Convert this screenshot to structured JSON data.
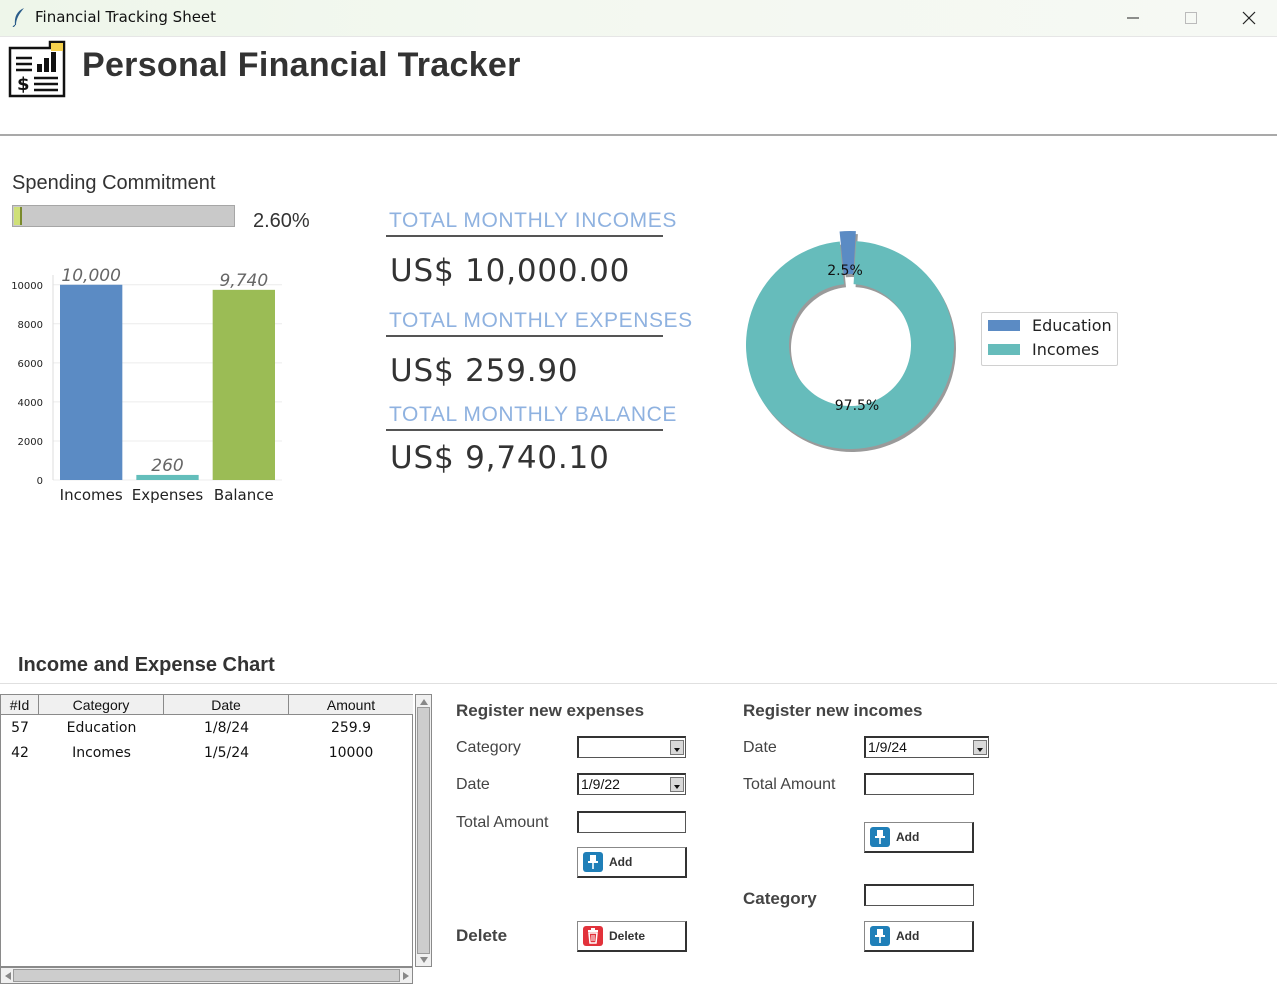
{
  "window": {
    "title": "Financial Tracking Sheet"
  },
  "header": {
    "title": "Personal Financial Tracker"
  },
  "spending": {
    "label": "Spending Commitment",
    "percent_text": "2.60%",
    "progress": 0.026
  },
  "bar_chart": {
    "type": "bar",
    "categories": [
      "Incomes",
      "Expenses",
      "Balance"
    ],
    "values": [
      10000,
      259.9,
      9740.1
    ],
    "value_labels": [
      "10,000",
      "260",
      "9,740"
    ],
    "colors": [
      "#5b8bc4",
      "#63bebb",
      "#9bbc55"
    ],
    "ylim": [
      0,
      10500
    ],
    "yticks": [
      0,
      2000,
      4000,
      6000,
      8000,
      10000
    ],
    "grid": true
  },
  "totals": {
    "incomes_label": "TOTAL  MONTHLY  INCOMES",
    "incomes_value": "US$ 10,000.00",
    "expenses_label": "TOTAL  MONTHLY  EXPENSES",
    "expenses_value": "US$ 259.90",
    "balance_label": "TOTAL  MONTHLY  BALANCE",
    "balance_value": "US$ 9,740.10"
  },
  "donut_chart": {
    "type": "pie",
    "slices": [
      {
        "name": "Education",
        "value": 2.5,
        "label": "2.5%",
        "color": "#5b8bc4"
      },
      {
        "name": "Incomes",
        "value": 97.5,
        "label": "97.5%",
        "color": "#66bcbb"
      }
    ],
    "legend": "right"
  },
  "section": {
    "title": "Income and Expense Chart"
  },
  "table": {
    "columns": [
      "#Id",
      "Category",
      "Date",
      "Amount"
    ],
    "rows": [
      [
        "57",
        "Education",
        "1/8/24",
        "259.9"
      ],
      [
        "42",
        "Incomes",
        "1/5/24",
        "10000"
      ]
    ]
  },
  "expenses_form": {
    "title": "Register new expenses",
    "category_label": "Category",
    "category_value": "",
    "date_label": "Date",
    "date_value": "1/9/22",
    "amount_label": "Total Amount",
    "amount_value": "",
    "add_label": "Add",
    "delete_label": "Delete",
    "delete_button_label": "Delete"
  },
  "incomes_form": {
    "title": "Register new incomes",
    "date_label": "Date",
    "date_value": "1/9/24",
    "amount_label": "Total Amount",
    "amount_value": "",
    "add_label": "Add",
    "category_label": "Category",
    "category_value": "",
    "category_add_label": "Add"
  }
}
